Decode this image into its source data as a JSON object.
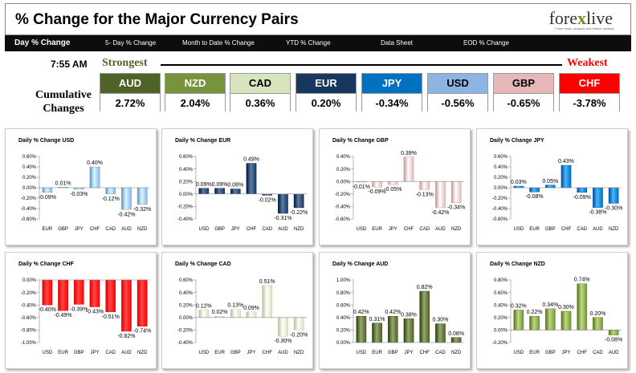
{
  "header": {
    "title": "% Change for the Major Currency Pairs",
    "logo_text": "forexlive",
    "logo_tagline": "Forex news, analysis and Market updates"
  },
  "nav": [
    {
      "label": "Day % Change",
      "active": true
    },
    {
      "label": "5- Day % Change",
      "active": false
    },
    {
      "label": "Month to Date % Change",
      "active": false
    },
    {
      "label": "YTD % Change",
      "active": false
    },
    {
      "label": "Data Sheet",
      "active": false
    },
    {
      "label": "EOD % Change",
      "active": false
    }
  ],
  "summary": {
    "time": "7:55 AM",
    "strongest_label": "Strongest",
    "weakest_label": "Weakest",
    "cumulative_label_1": "Cumulative",
    "cumulative_label_2": "Changes",
    "currencies": [
      {
        "code": "AUD",
        "value": "2.72%",
        "color": "#4f6228",
        "text_color": "#ffffff"
      },
      {
        "code": "NZD",
        "value": "2.04%",
        "color": "#77933c",
        "text_color": "#ffffff"
      },
      {
        "code": "CAD",
        "value": "0.36%",
        "color": "#d7e4bd",
        "text_color": "#000000"
      },
      {
        "code": "EUR",
        "value": "0.20%",
        "color": "#17375e",
        "text_color": "#ffffff"
      },
      {
        "code": "JPY",
        "value": "-0.34%",
        "color": "#0070c0",
        "text_color": "#ffffff"
      },
      {
        "code": "USD",
        "value": "-0.56%",
        "color": "#8db4e2",
        "text_color": "#000000"
      },
      {
        "code": "GBP",
        "value": "-0.65%",
        "color": "#e6b9b8",
        "text_color": "#000000"
      },
      {
        "code": "CHF",
        "value": "-3.78%",
        "color": "#ff0000",
        "text_color": "#ffffff"
      }
    ]
  },
  "chart_data": [
    {
      "type": "bar",
      "title": "Daily % Change USD",
      "categories": [
        "EUR",
        "GBP",
        "JPY",
        "CHF",
        "CAD",
        "AUD",
        "NZD"
      ],
      "values": [
        -0.09,
        0.01,
        -0.03,
        0.4,
        -0.12,
        -0.42,
        -0.32
      ],
      "labels": [
        "-0.09%",
        "0.01%",
        "-0.03%",
        "0.40%",
        "-0.12%",
        "-0.42%",
        "-0.32%"
      ],
      "yticks": [
        "0.60%",
        "0.40%",
        "0.20%",
        "0.00%",
        "-0.20%",
        "-0.40%",
        "-0.60%"
      ],
      "ylim": [
        -0.6,
        0.6
      ],
      "color": "#8db4e2"
    },
    {
      "type": "bar",
      "title": "Daily % Change EUR",
      "categories": [
        "USD",
        "GBP",
        "JPY",
        "CHF",
        "CAD",
        "AUD",
        "NZD"
      ],
      "values": [
        0.09,
        0.09,
        0.08,
        0.49,
        -0.02,
        -0.31,
        -0.22
      ],
      "labels": [
        "0.09%",
        "0.09%",
        "0.08%",
        "0.49%",
        "-0.02%",
        "-0.31%",
        "-0.22%"
      ],
      "yticks": [
        "0.60%",
        "0.40%",
        "0.20%",
        "0.00%",
        "-0.20%",
        "-0.40%"
      ],
      "ylim": [
        -0.4,
        0.6
      ],
      "color": "#17375e"
    },
    {
      "type": "bar",
      "title": "Daily % Change GBP",
      "categories": [
        "USD",
        "EUR",
        "JPY",
        "CHF",
        "CAD",
        "AUD",
        "NZD"
      ],
      "values": [
        -0.01,
        -0.09,
        -0.05,
        0.39,
        -0.13,
        -0.42,
        -0.34
      ],
      "labels": [
        "-0.01%",
        "-0.09%",
        "-0.05%",
        "0.39%",
        "-0.13%",
        "-0.42%",
        "-0.34%"
      ],
      "yticks": [
        "0.40%",
        "0.20%",
        "0.00%",
        "-0.20%",
        "-0.40%",
        "-0.60%"
      ],
      "ylim": [
        -0.6,
        0.4
      ],
      "color": "#e6b9b8"
    },
    {
      "type": "bar",
      "title": "Daily % Change JPY",
      "categories": [
        "USD",
        "EUR",
        "GBP",
        "CHF",
        "CAD",
        "AUD",
        "NZD"
      ],
      "values": [
        0.03,
        -0.08,
        0.05,
        0.43,
        -0.09,
        -0.38,
        -0.3
      ],
      "labels": [
        "0.03%",
        "-0.08%",
        "0.05%",
        "0.43%",
        "-0.09%",
        "-0.38%",
        "-0.30%"
      ],
      "yticks": [
        "0.60%",
        "0.40%",
        "0.20%",
        "0.00%",
        "-0.20%",
        "-0.40%",
        "-0.60%"
      ],
      "ylim": [
        -0.6,
        0.6
      ],
      "color": "#0070c0"
    },
    {
      "type": "bar",
      "title": "Daily % Change CHF",
      "categories": [
        "USD",
        "EUR",
        "GBP",
        "JPY",
        "CAD",
        "AUD",
        "NZD"
      ],
      "values": [
        -0.4,
        -0.49,
        -0.39,
        -0.43,
        -0.51,
        -0.82,
        -0.74
      ],
      "labels": [
        "-0.40%",
        "-0.49%",
        "-0.39%",
        "-0.43%",
        "-0.51%",
        "-0.82%",
        "-0.74%"
      ],
      "yticks": [
        "0.00%",
        "-0.20%",
        "-0.40%",
        "-0.60%",
        "-0.80%",
        "-1.00%"
      ],
      "ylim": [
        -1.0,
        0.0
      ],
      "color": "#ff0000"
    },
    {
      "type": "bar",
      "title": "Daily % Change CAD",
      "categories": [
        "USD",
        "EUR",
        "GBP",
        "JPY",
        "CHF",
        "AUD",
        "NZD"
      ],
      "values": [
        0.12,
        0.02,
        0.13,
        0.09,
        0.51,
        -0.3,
        -0.2
      ],
      "labels": [
        "0.12%",
        "0.02%",
        "0.13%",
        "0.09%",
        "0.51%",
        "-0.30%",
        "-0.20%"
      ],
      "yticks": [
        "0.60%",
        "0.40%",
        "0.20%",
        "0.00%",
        "-0.20%",
        "-0.40%"
      ],
      "ylim": [
        -0.4,
        0.6
      ],
      "color": "#d7e4bd"
    },
    {
      "type": "bar",
      "title": "Daily % Change AUD",
      "categories": [
        "USD",
        "EUR",
        "GBP",
        "JPY",
        "CHF",
        "CAD",
        "NZD"
      ],
      "values": [
        0.42,
        0.31,
        0.42,
        0.38,
        0.82,
        0.3,
        0.08
      ],
      "labels": [
        "0.42%",
        "0.31%",
        "0.42%",
        "0.38%",
        "0.82%",
        "0.30%",
        "0.08%"
      ],
      "yticks": [
        "1.00%",
        "0.80%",
        "0.60%",
        "0.40%",
        "0.20%",
        "0.00%"
      ],
      "ylim": [
        0,
        1.0
      ],
      "color": "#4f6228"
    },
    {
      "type": "bar",
      "title": "Daily % Change NZD",
      "categories": [
        "USD",
        "EUR",
        "GBP",
        "JPY",
        "CHF",
        "CAD",
        "AUD"
      ],
      "values": [
        0.32,
        0.22,
        0.34,
        0.3,
        0.74,
        0.2,
        -0.08
      ],
      "labels": [
        "0.32%",
        "0.22%",
        "0.34%",
        "0.30%",
        "0.74%",
        "0.20%",
        "-0.08%"
      ],
      "yticks": [
        "0.80%",
        "0.60%",
        "0.40%",
        "0.20%",
        "0.00%",
        "-0.20%"
      ],
      "ylim": [
        -0.2,
        0.8
      ],
      "color": "#77933c"
    }
  ]
}
